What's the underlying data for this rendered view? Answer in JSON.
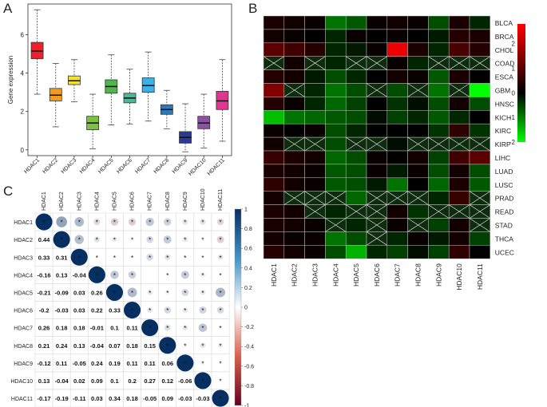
{
  "panels": {
    "A": "A",
    "B": "B",
    "C": "C"
  },
  "chart_data": [
    {
      "type": "box",
      "panel": "A",
      "ylabel": "Gene expression",
      "xlabel": "",
      "ylim": [
        -0.3,
        7.6
      ],
      "yticks": [
        "0",
        "2",
        "4",
        "6"
      ],
      "categories": [
        "HDAC1",
        "HDAC2",
        "HDAC3",
        "HDAC4",
        "HDAC5",
        "HDAC6",
        "HDAC7",
        "HDAC8",
        "HDAC9",
        "HDAC10",
        "HDAC11"
      ],
      "colors": [
        "#e8232b",
        "#f39b1d",
        "#f2e130",
        "#7cc242",
        "#4db848",
        "#4ab89c",
        "#3ab2e6",
        "#2e79b9",
        "#2b3a93",
        "#8c52a1",
        "#e0368f"
      ],
      "boxes": [
        {
          "min": 2.9,
          "q1": 4.75,
          "median": 5.15,
          "q3": 5.6,
          "max": 7.3
        },
        {
          "min": 1.2,
          "q1": 2.55,
          "median": 2.85,
          "q3": 3.2,
          "max": 4.5
        },
        {
          "min": 2.5,
          "q1": 3.4,
          "median": 3.6,
          "q3": 3.85,
          "max": 4.7
        },
        {
          "min": 0.05,
          "q1": 1.05,
          "median": 1.4,
          "q3": 1.75,
          "max": 2.9
        },
        {
          "min": 1.3,
          "q1": 2.95,
          "median": 3.3,
          "q3": 3.65,
          "max": 4.95
        },
        {
          "min": 1.35,
          "q1": 2.45,
          "median": 2.7,
          "q3": 2.95,
          "max": 4.2
        },
        {
          "min": 1.5,
          "q1": 3.0,
          "median": 3.35,
          "q3": 3.75,
          "max": 5.1
        },
        {
          "min": 1.1,
          "q1": 1.85,
          "median": 2.1,
          "q3": 2.35,
          "max": 3.1
        },
        {
          "min": -0.1,
          "q1": 0.35,
          "median": 0.65,
          "q3": 0.95,
          "max": 2.4
        },
        {
          "min": 0.1,
          "q1": 1.1,
          "median": 1.4,
          "q3": 1.75,
          "max": 2.9
        },
        {
          "min": 0.45,
          "q1": 2.1,
          "median": 2.55,
          "q3": 3.05,
          "max": 4.7
        }
      ]
    },
    {
      "type": "heatmap",
      "panel": "B",
      "columns": [
        "HDAC1",
        "HDAC2",
        "HDAC3",
        "HDAC4",
        "HDAC5",
        "HDAC6",
        "HDAC7",
        "HDAC8",
        "HDAC9",
        "HDAC10",
        "HDAC11"
      ],
      "rows": [
        "BLCA",
        "BRCA",
        "CHOL",
        "COAD",
        "ESCA",
        "GBM",
        "HNSC",
        "KICH",
        "KIRC",
        "KIRP",
        "LIHC",
        "LUAD",
        "LUSC",
        "PRAD",
        "READ",
        "STAD",
        "THCA",
        "UCEC"
      ],
      "color_scale": {
        "low": "#00ff00",
        "mid": "#000000",
        "high": "#ff0000",
        "min": -2,
        "max": 2.8
      },
      "legend_ticks": [
        "2",
        "1",
        "0",
        "-1",
        "-2"
      ],
      "values": [
        [
          0.3,
          0.2,
          0.1,
          -0.9,
          -0.7,
          0.1,
          0.2,
          0.1,
          -0.6,
          0.3,
          -0.3
        ],
        [
          0.2,
          0.1,
          0.0,
          -0.3,
          0.1,
          0.0,
          0.1,
          0.0,
          -0.2,
          0.4,
          0.3
        ],
        [
          1.0,
          0.7,
          0.4,
          -0.3,
          -0.2,
          0.1,
          2.6,
          0.3,
          -0.3,
          0.8,
          0.4
        ],
        [
          null,
          0.2,
          null,
          -0.3,
          null,
          null,
          0.1,
          -0.3,
          null,
          null,
          null
        ],
        [
          0.4,
          0.2,
          -0.2,
          -0.6,
          -0.3,
          0.0,
          0.2,
          0.1,
          -0.7,
          0.3,
          0.0
        ],
        [
          1.4,
          null,
          -0.3,
          -0.9,
          -0.6,
          null,
          -0.6,
          null,
          -0.9,
          null,
          -2.0
        ],
        [
          0.4,
          0.1,
          -0.3,
          -0.8,
          -0.5,
          0.0,
          -0.4,
          -0.1,
          -0.6,
          0.2,
          -0.6
        ],
        [
          -1.5,
          -0.9,
          -0.8,
          -0.7,
          -0.6,
          -0.1,
          -0.5,
          -0.3,
          -0.7,
          -0.3,
          0.0
        ],
        [
          0.1,
          0.0,
          0.1,
          -0.6,
          -0.3,
          0.0,
          0.0,
          0.0,
          -0.4,
          0.5,
          -0.4
        ],
        [
          0.2,
          null,
          null,
          -0.6,
          null,
          null,
          -0.1,
          null,
          null,
          null,
          null
        ],
        [
          0.6,
          0.3,
          0.2,
          -0.8,
          -0.6,
          0.1,
          0.0,
          0.2,
          -0.5,
          0.7,
          1.0
        ],
        [
          0.3,
          0.2,
          0.1,
          -0.7,
          -0.6,
          0.1,
          -0.2,
          0.1,
          -0.6,
          0.2,
          -0.6
        ],
        [
          0.5,
          0.2,
          0.1,
          -0.7,
          -0.6,
          -0.2,
          -0.9,
          0.0,
          -0.8,
          0.3,
          -0.7
        ],
        [
          0.2,
          null,
          null,
          null,
          -0.8,
          null,
          null,
          null,
          -0.3,
          0.6,
          null
        ],
        [
          0.3,
          0.2,
          null,
          -0.3,
          null,
          null,
          0.2,
          -0.4,
          null,
          null,
          null
        ],
        [
          0.3,
          0.2,
          0.1,
          null,
          -0.3,
          null,
          0.1,
          null,
          -0.5,
          0.2,
          null
        ],
        [
          0.2,
          0.1,
          0.1,
          -0.9,
          -0.6,
          null,
          -0.3,
          0.1,
          -0.2,
          0.2,
          -0.5
        ],
        [
          0.4,
          0.2,
          0.1,
          -0.6,
          -1.4,
          -0.3,
          -0.5,
          -0.1,
          -0.5,
          0.5,
          0.0
        ]
      ]
    },
    {
      "type": "correlation",
      "panel": "C",
      "labels": [
        "HDAC1",
        "HDAC2",
        "HDAC3",
        "HDAC4",
        "HDAC5",
        "HDAC6",
        "HDAC7",
        "HDAC8",
        "HDAC9",
        "HDAC10",
        "HDAC11"
      ],
      "legend_ticks": [
        "1",
        "0.8",
        "0.6",
        "0.4",
        "0.2",
        "0",
        "-0.2",
        "-0.4",
        "-0.6",
        "-0.8",
        "-1"
      ],
      "lower": [
        [],
        [
          "0.44"
        ],
        [
          "0.33",
          "0.31"
        ],
        [
          "-0.16",
          "0.13",
          "-0.04"
        ],
        [
          "-0.21",
          "-0.09",
          "0.03",
          "0.26"
        ],
        [
          "-0.2",
          "-0.03",
          "0.03",
          "0.22",
          "0.33"
        ],
        [
          "0.26",
          "0.18",
          "0.18",
          "-0.01",
          "0.1",
          "0.11"
        ],
        [
          "0.21",
          "0.24",
          "0.13",
          "-0.04",
          "0.07",
          "0.18",
          "0.15"
        ],
        [
          "-0.12",
          "0.11",
          "-0.05",
          "0.24",
          "0.19",
          "0.11",
          "0.11",
          "0.06"
        ],
        [
          "0.13",
          "-0.04",
          "0.02",
          "0.09",
          "0.1",
          "0.2",
          "0.27",
          "0.12",
          "-0.06"
        ],
        [
          "-0.17",
          "-0.19",
          "-0.11",
          "0.03",
          "0.34",
          "0.18",
          "-0.05",
          "0.09",
          "-0.03",
          "-0.03"
        ]
      ],
      "upper_stars": [
        [
          false,
          true,
          true,
          true,
          true,
          true,
          true,
          true,
          true,
          true,
          true
        ],
        [
          false,
          false,
          true,
          true,
          true,
          true,
          true,
          true,
          true,
          true,
          true
        ],
        [
          false,
          false,
          false,
          true,
          true,
          true,
          true,
          true,
          true,
          true,
          true
        ],
        [
          false,
          false,
          false,
          false,
          true,
          true,
          false,
          true,
          true,
          true,
          true
        ],
        [
          false,
          false,
          false,
          false,
          false,
          true,
          true,
          true,
          true,
          true,
          true
        ],
        [
          false,
          false,
          false,
          false,
          false,
          false,
          true,
          true,
          true,
          true,
          true
        ],
        [
          false,
          false,
          false,
          false,
          false,
          false,
          false,
          true,
          true,
          true,
          true
        ],
        [
          false,
          false,
          false,
          false,
          false,
          false,
          false,
          false,
          true,
          true,
          true
        ],
        [
          false,
          false,
          false,
          false,
          false,
          false,
          false,
          false,
          false,
          true,
          true
        ],
        [
          false,
          false,
          false,
          false,
          false,
          false,
          false,
          false,
          false,
          false,
          true
        ],
        [
          false,
          false,
          false,
          false,
          false,
          false,
          false,
          false,
          false,
          false,
          false
        ]
      ],
      "diagonal_star": "*"
    }
  ]
}
